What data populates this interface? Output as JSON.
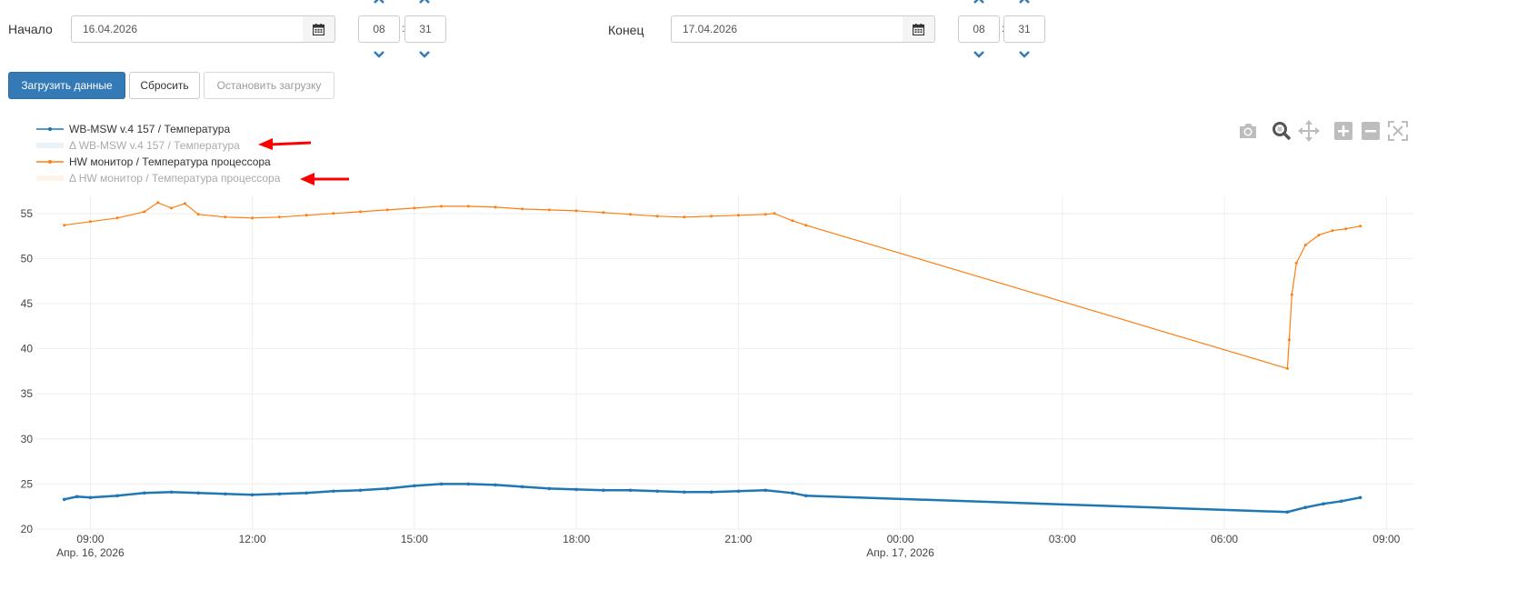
{
  "start": {
    "label": "Начало",
    "date": "16.04.2026",
    "hour": "08",
    "minute": "31"
  },
  "end": {
    "label": "Конец",
    "date": "17.04.2026",
    "hour": "08",
    "minute": "31"
  },
  "time_separator": ":",
  "buttons": {
    "load": "Загрузить данные",
    "reset": "Сбросить",
    "stop": "Остановить загрузку"
  },
  "legend": [
    {
      "label": "WB-MSW v.4 157 / Температура",
      "color": "#1f77b4",
      "visible": true
    },
    {
      "label": "Δ WB-MSW v.4 157 / Температура",
      "color": "#1f77b4",
      "visible": false
    },
    {
      "label": "HW монитор / Температура процессора",
      "color": "#ff7f0e",
      "visible": true
    },
    {
      "label": "Δ HW монитор / Температура процессора",
      "color": "#ff7f0e",
      "visible": false
    }
  ],
  "modebar_icons": [
    "camera-icon",
    "zoom-icon",
    "pan-icon",
    "zoom-in-icon",
    "zoom-out-icon",
    "autoscale-icon"
  ],
  "annotation_arrow_color": "#ff0000",
  "chart_data": {
    "type": "line",
    "x_axis_type": "datetime",
    "x_range": [
      "2026-04-16 08:00",
      "2026-04-17 09:30"
    ],
    "x_ticks": [
      {
        "time": "2026-04-16 09:00",
        "label": "09:00",
        "sublabel": "Апр. 16, 2026"
      },
      {
        "time": "2026-04-16 12:00",
        "label": "12:00",
        "sublabel": ""
      },
      {
        "time": "2026-04-16 15:00",
        "label": "15:00",
        "sublabel": ""
      },
      {
        "time": "2026-04-16 18:00",
        "label": "18:00",
        "sublabel": ""
      },
      {
        "time": "2026-04-16 21:00",
        "label": "21:00",
        "sublabel": ""
      },
      {
        "time": "2026-04-17 00:00",
        "label": "00:00",
        "sublabel": "Апр. 17, 2026"
      },
      {
        "time": "2026-04-17 03:00",
        "label": "03:00",
        "sublabel": ""
      },
      {
        "time": "2026-04-17 06:00",
        "label": "06:00",
        "sublabel": ""
      },
      {
        "time": "2026-04-17 09:00",
        "label": "09:00",
        "sublabel": ""
      }
    ],
    "ylim": [
      20,
      57
    ],
    "y_ticks": [
      20,
      25,
      30,
      35,
      40,
      45,
      50,
      55
    ],
    "grid": true,
    "legend_position": "top-left",
    "series": [
      {
        "name": "WB-MSW v.4 157 / Температура",
        "color": "#1f77b4",
        "x": [
          "2026-04-16 08:31",
          "2026-04-16 08:45",
          "2026-04-16 09:00",
          "2026-04-16 09:30",
          "2026-04-16 10:00",
          "2026-04-16 10:30",
          "2026-04-16 11:00",
          "2026-04-16 11:30",
          "2026-04-16 12:00",
          "2026-04-16 12:30",
          "2026-04-16 13:00",
          "2026-04-16 13:30",
          "2026-04-16 14:00",
          "2026-04-16 14:30",
          "2026-04-16 15:00",
          "2026-04-16 15:30",
          "2026-04-16 16:00",
          "2026-04-16 16:30",
          "2026-04-16 17:00",
          "2026-04-16 17:30",
          "2026-04-16 18:00",
          "2026-04-16 18:30",
          "2026-04-16 19:00",
          "2026-04-16 19:30",
          "2026-04-16 20:00",
          "2026-04-16 20:30",
          "2026-04-16 21:00",
          "2026-04-16 21:30",
          "2026-04-16 22:00",
          "2026-04-16 22:15",
          "2026-04-17 07:10",
          "2026-04-17 07:30",
          "2026-04-17 07:50",
          "2026-04-17 08:10",
          "2026-04-17 08:31"
        ],
        "values": [
          23.3,
          23.6,
          23.5,
          23.7,
          24.0,
          24.1,
          24.0,
          23.9,
          23.8,
          23.9,
          24.0,
          24.2,
          24.3,
          24.5,
          24.8,
          25.0,
          25.0,
          24.9,
          24.7,
          24.5,
          24.4,
          24.3,
          24.3,
          24.2,
          24.1,
          24.1,
          24.2,
          24.3,
          24.0,
          23.7,
          21.9,
          22.4,
          22.8,
          23.1,
          23.5
        ]
      },
      {
        "name": "HW монитор / Температура процессора",
        "color": "#ff7f0e",
        "x": [
          "2026-04-16 08:31",
          "2026-04-16 09:00",
          "2026-04-16 09:30",
          "2026-04-16 10:00",
          "2026-04-16 10:15",
          "2026-04-16 10:30",
          "2026-04-16 10:45",
          "2026-04-16 11:00",
          "2026-04-16 11:30",
          "2026-04-16 12:00",
          "2026-04-16 12:30",
          "2026-04-16 13:00",
          "2026-04-16 13:30",
          "2026-04-16 14:00",
          "2026-04-16 14:30",
          "2026-04-16 15:00",
          "2026-04-16 15:30",
          "2026-04-16 16:00",
          "2026-04-16 16:30",
          "2026-04-16 17:00",
          "2026-04-16 17:30",
          "2026-04-16 18:00",
          "2026-04-16 18:30",
          "2026-04-16 19:00",
          "2026-04-16 19:30",
          "2026-04-16 20:00",
          "2026-04-16 20:30",
          "2026-04-16 21:00",
          "2026-04-16 21:30",
          "2026-04-16 21:40",
          "2026-04-16 22:00",
          "2026-04-16 22:15",
          "2026-04-17 07:10",
          "2026-04-17 07:12",
          "2026-04-17 07:15",
          "2026-04-17 07:20",
          "2026-04-17 07:30",
          "2026-04-17 07:45",
          "2026-04-17 08:00",
          "2026-04-17 08:15",
          "2026-04-17 08:31"
        ],
        "values": [
          53.7,
          54.1,
          54.5,
          55.2,
          56.2,
          55.6,
          56.1,
          54.9,
          54.6,
          54.5,
          54.6,
          54.8,
          55.0,
          55.2,
          55.4,
          55.6,
          55.8,
          55.8,
          55.7,
          55.5,
          55.4,
          55.3,
          55.1,
          54.9,
          54.7,
          54.6,
          54.7,
          54.8,
          54.9,
          55.0,
          54.2,
          53.7,
          37.8,
          41.0,
          46.0,
          49.5,
          51.5,
          52.6,
          53.1,
          53.3,
          53.6
        ]
      }
    ]
  }
}
